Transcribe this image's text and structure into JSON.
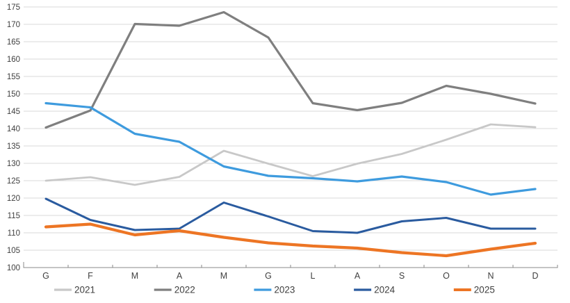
{
  "chart_data": {
    "type": "line",
    "title": "",
    "xlabel": "",
    "ylabel": "",
    "categories": [
      "G",
      "F",
      "M",
      "A",
      "M",
      "G",
      "L",
      "A",
      "S",
      "O",
      "N",
      "D"
    ],
    "series": [
      {
        "name": "2021",
        "color": "#C8C8C8",
        "values": [
          125.0,
          126.0,
          123.8,
          126.1,
          133.6,
          129.9,
          126.3,
          129.9,
          132.7,
          136.8,
          141.2,
          140.4
        ]
      },
      {
        "name": "2022",
        "color": "#7F7F7F",
        "values": [
          140.3,
          145.2,
          170.1,
          169.6,
          173.5,
          166.2,
          147.3,
          145.3,
          147.4,
          152.3,
          150.0,
          147.2
        ]
      },
      {
        "name": "2023",
        "color": "#3E9BDE",
        "values": [
          147.3,
          146.1,
          138.5,
          136.2,
          129.1,
          126.4,
          125.7,
          124.8,
          126.2,
          124.6,
          121.0,
          122.6
        ]
      },
      {
        "name": "2024",
        "color": "#2A5B9F",
        "values": [
          119.8,
          113.7,
          110.8,
          111.2,
          118.7,
          114.7,
          110.5,
          110.0,
          113.3,
          114.3,
          111.2,
          111.2
        ]
      },
      {
        "name": "2025",
        "color": "#ED7524",
        "values": [
          111.7,
          112.5,
          109.4,
          110.6,
          108.7,
          107.1,
          106.2,
          105.6,
          104.3,
          103.4,
          105.3,
          107.0
        ]
      }
    ],
    "ylim": [
      100,
      175
    ],
    "y_ticks": [
      175,
      170,
      165,
      160,
      155,
      150,
      145,
      140,
      135,
      130,
      125,
      120,
      115,
      110,
      105,
      100
    ],
    "grid": true,
    "legend_position": "bottom",
    "legend_labels": [
      "2021",
      "2022",
      "2023",
      "2024",
      "2025"
    ]
  },
  "style": {
    "gridline_color": "#D9D9D9",
    "axis_line_color": "#898989",
    "tick_label_color": "#404040",
    "legend_text_color": "#3F3F3F",
    "background_color": "#FFFFFF"
  }
}
